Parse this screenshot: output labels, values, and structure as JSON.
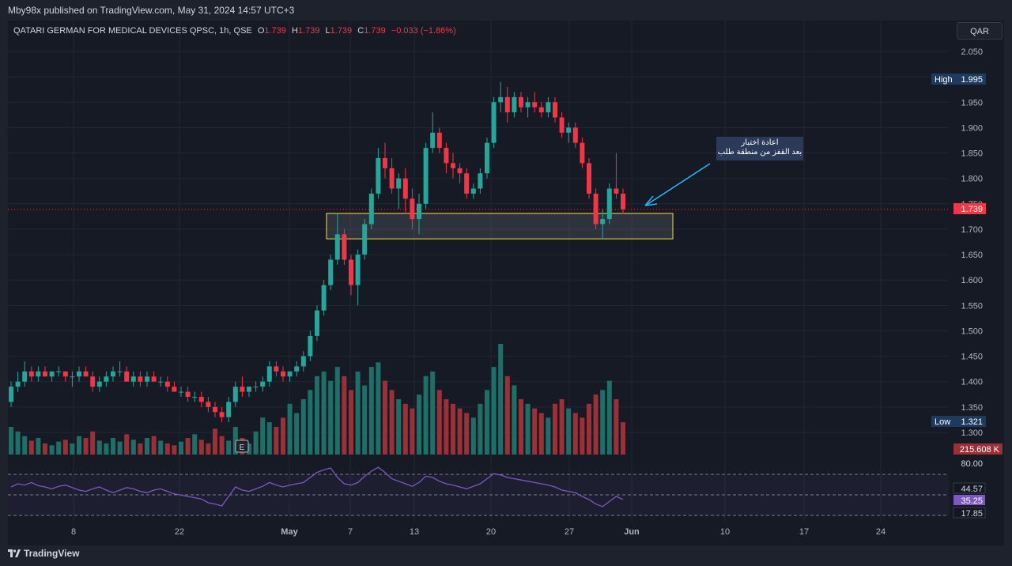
{
  "header": {
    "published": "Mby98x published on TradingView.com, May 31, 2024 14:57 UTC+3"
  },
  "legend": {
    "symbol": "QATARI GERMAN FOR MEDICAL DEVICES QPSC, 1h, QSE",
    "o_label": "O",
    "o_value": "1.739",
    "h_label": "H",
    "h_value": "1.739",
    "l_label": "L",
    "l_value": "1.739",
    "c_label": "C",
    "c_value": "1.739",
    "change": "−0.033 (−1.86%)"
  },
  "currency": "QAR",
  "annotation": {
    "line1": "اعادة اختبار",
    "line2": "بعد القفز من منطقة طلب"
  },
  "footer": {
    "brand": "TradingView"
  },
  "colors": {
    "up": "#26a69a",
    "down": "#f23645",
    "up_volume": "#1f6f69",
    "down_volume": "#9b3037",
    "rsi": "#7e57c2",
    "zone_border": "#f5e342",
    "arrow": "#29b6f6",
    "high_label_bg": "#1e3a5f",
    "price_label_bg": "#f23645"
  },
  "chart_data": {
    "type": "candlestick",
    "timeframe": "1h",
    "price_axis": {
      "ticks": [
        "2.050",
        "2.000",
        "1.950",
        "1.900",
        "1.850",
        "1.800",
        "1.750",
        "1.700",
        "1.650",
        "1.600",
        "1.550",
        "1.500",
        "1.450",
        "1.400",
        "1.350",
        "1.300"
      ],
      "range": [
        1.27,
        2.07
      ]
    },
    "time_axis": {
      "labels": [
        "8",
        "22",
        "May",
        "7",
        "13",
        "20",
        "27",
        "Jun",
        "10",
        "17",
        "24"
      ]
    },
    "high_marker": {
      "label": "High",
      "value": "1.995"
    },
    "low_marker": {
      "label": "Low",
      "value": "1.321"
    },
    "last_price": "1.739",
    "volume_label": "215.608 K",
    "demand_zone": {
      "top": 1.731,
      "bottom": 1.681
    },
    "ohlc": [
      [
        1.36,
        1.4,
        1.35,
        1.39
      ],
      [
        1.39,
        1.42,
        1.38,
        1.4
      ],
      [
        1.4,
        1.44,
        1.39,
        1.42
      ],
      [
        1.42,
        1.43,
        1.4,
        1.41
      ],
      [
        1.41,
        1.43,
        1.4,
        1.42
      ],
      [
        1.42,
        1.43,
        1.41,
        1.41
      ],
      [
        1.41,
        1.42,
        1.4,
        1.42
      ],
      [
        1.42,
        1.43,
        1.41,
        1.42
      ],
      [
        1.42,
        1.42,
        1.4,
        1.41
      ],
      [
        1.41,
        1.42,
        1.39,
        1.41
      ],
      [
        1.41,
        1.43,
        1.4,
        1.42
      ],
      [
        1.42,
        1.43,
        1.41,
        1.41
      ],
      [
        1.41,
        1.42,
        1.38,
        1.39
      ],
      [
        1.39,
        1.41,
        1.38,
        1.4
      ],
      [
        1.4,
        1.42,
        1.39,
        1.41
      ],
      [
        1.41,
        1.43,
        1.4,
        1.42
      ],
      [
        1.42,
        1.44,
        1.41,
        1.42
      ],
      [
        1.42,
        1.43,
        1.4,
        1.4
      ],
      [
        1.4,
        1.42,
        1.39,
        1.41
      ],
      [
        1.41,
        1.42,
        1.39,
        1.4
      ],
      [
        1.4,
        1.42,
        1.39,
        1.41
      ],
      [
        1.41,
        1.42,
        1.4,
        1.4
      ],
      [
        1.4,
        1.41,
        1.39,
        1.4
      ],
      [
        1.4,
        1.41,
        1.38,
        1.39
      ],
      [
        1.39,
        1.4,
        1.38,
        1.38
      ],
      [
        1.38,
        1.39,
        1.37,
        1.38
      ],
      [
        1.38,
        1.39,
        1.36,
        1.37
      ],
      [
        1.37,
        1.38,
        1.36,
        1.37
      ],
      [
        1.37,
        1.38,
        1.35,
        1.36
      ],
      [
        1.36,
        1.37,
        1.34,
        1.35
      ],
      [
        1.35,
        1.36,
        1.33,
        1.34
      ],
      [
        1.34,
        1.35,
        1.32,
        1.33
      ],
      [
        1.33,
        1.37,
        1.32,
        1.36
      ],
      [
        1.36,
        1.4,
        1.35,
        1.39
      ],
      [
        1.39,
        1.41,
        1.37,
        1.38
      ],
      [
        1.38,
        1.39,
        1.37,
        1.39
      ],
      [
        1.39,
        1.4,
        1.38,
        1.39
      ],
      [
        1.39,
        1.41,
        1.38,
        1.4
      ],
      [
        1.4,
        1.44,
        1.39,
        1.43
      ],
      [
        1.43,
        1.44,
        1.41,
        1.42
      ],
      [
        1.42,
        1.43,
        1.4,
        1.41
      ],
      [
        1.41,
        1.42,
        1.4,
        1.42
      ],
      [
        1.42,
        1.44,
        1.41,
        1.43
      ],
      [
        1.43,
        1.46,
        1.42,
        1.45
      ],
      [
        1.45,
        1.5,
        1.44,
        1.49
      ],
      [
        1.49,
        1.55,
        1.48,
        1.54
      ],
      [
        1.54,
        1.6,
        1.53,
        1.59
      ],
      [
        1.59,
        1.65,
        1.58,
        1.64
      ],
      [
        1.64,
        1.73,
        1.63,
        1.69
      ],
      [
        1.69,
        1.7,
        1.63,
        1.64
      ],
      [
        1.64,
        1.65,
        1.57,
        1.59
      ],
      [
        1.59,
        1.66,
        1.55,
        1.65
      ],
      [
        1.65,
        1.72,
        1.64,
        1.71
      ],
      [
        1.71,
        1.78,
        1.7,
        1.77
      ],
      [
        1.77,
        1.86,
        1.76,
        1.84
      ],
      [
        1.84,
        1.87,
        1.8,
        1.82
      ],
      [
        1.82,
        1.84,
        1.77,
        1.78
      ],
      [
        1.78,
        1.81,
        1.74,
        1.8
      ],
      [
        1.8,
        1.82,
        1.73,
        1.76
      ],
      [
        1.76,
        1.78,
        1.7,
        1.72
      ],
      [
        1.72,
        1.77,
        1.69,
        1.75
      ],
      [
        1.75,
        1.87,
        1.74,
        1.86
      ],
      [
        1.86,
        1.93,
        1.85,
        1.89
      ],
      [
        1.89,
        1.9,
        1.85,
        1.86
      ],
      [
        1.86,
        1.87,
        1.81,
        1.83
      ],
      [
        1.83,
        1.85,
        1.8,
        1.82
      ],
      [
        1.82,
        1.83,
        1.79,
        1.81
      ],
      [
        1.81,
        1.82,
        1.76,
        1.77
      ],
      [
        1.77,
        1.79,
        1.76,
        1.78
      ],
      [
        1.78,
        1.82,
        1.77,
        1.81
      ],
      [
        1.81,
        1.88,
        1.8,
        1.87
      ],
      [
        1.87,
        1.96,
        1.86,
        1.95
      ],
      [
        1.95,
        1.99,
        1.93,
        1.96
      ],
      [
        1.96,
        1.98,
        1.91,
        1.93
      ],
      [
        1.93,
        1.97,
        1.92,
        1.96
      ],
      [
        1.96,
        1.97,
        1.93,
        1.94
      ],
      [
        1.94,
        1.96,
        1.92,
        1.95
      ],
      [
        1.95,
        1.97,
        1.93,
        1.94
      ],
      [
        1.94,
        1.95,
        1.92,
        1.93
      ],
      [
        1.93,
        1.96,
        1.92,
        1.95
      ],
      [
        1.95,
        1.96,
        1.91,
        1.92
      ],
      [
        1.92,
        1.93,
        1.88,
        1.89
      ],
      [
        1.89,
        1.91,
        1.87,
        1.9
      ],
      [
        1.9,
        1.91,
        1.86,
        1.87
      ],
      [
        1.87,
        1.88,
        1.82,
        1.83
      ],
      [
        1.83,
        1.84,
        1.76,
        1.77
      ],
      [
        1.77,
        1.78,
        1.7,
        1.71
      ],
      [
        1.71,
        1.74,
        1.68,
        1.72
      ],
      [
        1.72,
        1.79,
        1.71,
        1.78
      ],
      [
        1.78,
        1.85,
        1.76,
        1.77
      ],
      [
        1.77,
        1.78,
        1.73,
        1.739
      ]
    ],
    "volume": [
      30,
      25,
      20,
      15,
      18,
      12,
      10,
      14,
      16,
      12,
      20,
      18,
      25,
      15,
      12,
      18,
      14,
      22,
      16,
      12,
      18,
      20,
      15,
      12,
      10,
      14,
      18,
      22,
      16,
      12,
      28,
      20,
      15,
      30,
      18,
      12,
      25,
      40,
      35,
      30,
      40,
      55,
      45,
      60,
      70,
      85,
      90,
      80,
      95,
      85,
      70,
      90,
      75,
      95,
      100,
      80,
      70,
      60,
      55,
      50,
      65,
      85,
      90,
      70,
      60,
      55,
      50,
      45,
      40,
      55,
      70,
      95,
      120,
      85,
      75,
      60,
      55,
      50,
      45,
      40,
      55,
      60,
      50,
      45,
      40,
      55,
      65,
      70,
      80,
      60,
      35
    ],
    "rsi": {
      "levels": [
        "80.00",
        "44.57",
        "35.25",
        "17.85"
      ],
      "values": [
        55,
        60,
        58,
        62,
        57,
        55,
        52,
        56,
        58,
        54,
        50,
        48,
        52,
        55,
        50,
        46,
        50,
        54,
        52,
        48,
        46,
        50,
        52,
        48,
        44,
        42,
        40,
        38,
        36,
        30,
        28,
        25,
        40,
        55,
        50,
        48,
        52,
        56,
        62,
        58,
        55,
        58,
        60,
        62,
        70,
        78,
        82,
        85,
        70,
        60,
        58,
        62,
        72,
        80,
        86,
        78,
        68,
        64,
        60,
        56,
        62,
        72,
        70,
        64,
        60,
        58,
        55,
        52,
        56,
        60,
        68,
        76,
        74,
        70,
        68,
        66,
        64,
        62,
        60,
        58,
        55,
        50,
        48,
        46,
        40,
        35,
        28,
        24,
        32,
        40,
        35.25
      ]
    }
  }
}
